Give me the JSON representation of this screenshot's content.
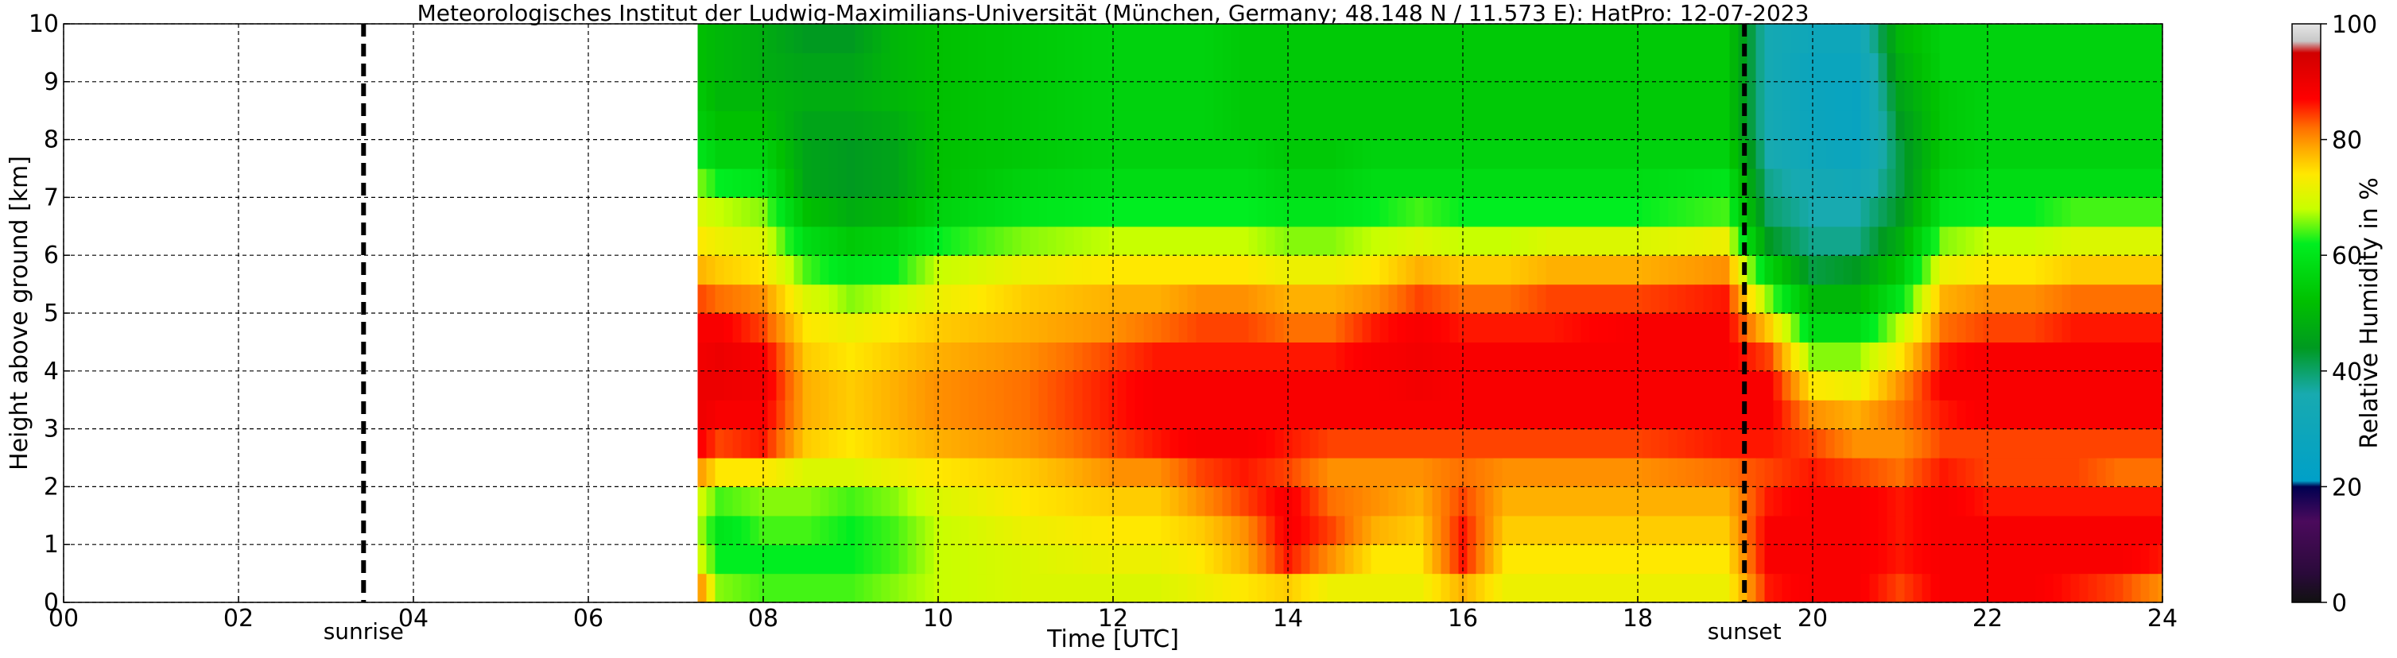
{
  "chart_data": {
    "type": "heatmap",
    "title": "Meteorologisches Institut der Ludwig-Maximilians-Universität (München, Germany; 48.148 N / 11.573 E):    HatPro: 12-07-2023",
    "xlabel": "Time [UTC]",
    "ylabel": "Height above ground [km]",
    "colorbar_label": "Relative Humidity in %",
    "xlim": [
      0,
      24
    ],
    "ylim": [
      0,
      10
    ],
    "xticks": [
      "00",
      "02",
      "04",
      "06",
      "08",
      "10",
      "12",
      "14",
      "16",
      "18",
      "20",
      "22",
      "24"
    ],
    "yticks": [
      "0",
      "1",
      "2",
      "3",
      "4",
      "5",
      "6",
      "7",
      "8",
      "9",
      "10"
    ],
    "colorbar_ticks": [
      "0",
      "20",
      "40",
      "60",
      "80",
      "100"
    ],
    "colorbar_range": [
      0,
      100
    ],
    "grid": true,
    "data_start_hour": 7.25,
    "events": [
      {
        "label": "sunrise",
        "hour": 3.43
      },
      {
        "label": "sunset",
        "hour": 19.22
      }
    ],
    "colormap": [
      {
        "value": 0,
        "color": "#111111"
      },
      {
        "value": 5,
        "color": "#2a0a3a"
      },
      {
        "value": 14,
        "color": "#4b0a5c"
      },
      {
        "value": 20,
        "color": "#000050"
      },
      {
        "value": 21,
        "color": "#00a0c8"
      },
      {
        "value": 36,
        "color": "#18aab0"
      },
      {
        "value": 44,
        "color": "#009a20"
      },
      {
        "value": 52,
        "color": "#00c000"
      },
      {
        "value": 62,
        "color": "#00ee20"
      },
      {
        "value": 68,
        "color": "#c8ff00"
      },
      {
        "value": 74,
        "color": "#ffe800"
      },
      {
        "value": 78,
        "color": "#ffb000"
      },
      {
        "value": 82,
        "color": "#ff7000"
      },
      {
        "value": 87,
        "color": "#ff0000"
      },
      {
        "value": 95,
        "color": "#d00000"
      },
      {
        "value": 97,
        "color": "#c8c8c8"
      },
      {
        "value": 100,
        "color": "#e6e6e6"
      }
    ],
    "heights_km": [
      0.25,
      0.75,
      1.25,
      1.75,
      2.25,
      2.75,
      3.25,
      3.75,
      4.25,
      4.75,
      5.25,
      5.75,
      6.25,
      6.75,
      7.25,
      7.75,
      8.25,
      8.75,
      9.25,
      9.75
    ],
    "humidity_profiles": [
      {
        "hour": 7.25,
        "rh": [
          82,
          70,
          68,
          70,
          80,
          88,
          90,
          90,
          89,
          88,
          84,
          78,
          74,
          70,
          66,
          60,
          55,
          54,
          52,
          52
        ]
      },
      {
        "hour": 7.5,
        "rh": [
          66,
          62,
          60,
          64,
          74,
          84,
          88,
          90,
          90,
          88,
          82,
          76,
          72,
          68,
          62,
          56,
          52,
          50,
          50,
          50
        ]
      },
      {
        "hour": 8.0,
        "rh": [
          64,
          62,
          64,
          66,
          74,
          86,
          88,
          89,
          88,
          84,
          80,
          74,
          70,
          66,
          60,
          56,
          52,
          50,
          48,
          48
        ]
      },
      {
        "hour": 8.5,
        "rh": [
          64,
          62,
          64,
          66,
          70,
          76,
          78,
          78,
          76,
          74,
          70,
          64,
          58,
          52,
          46,
          46,
          46,
          48,
          46,
          44
        ]
      },
      {
        "hour": 9.0,
        "rh": [
          64,
          62,
          62,
          64,
          70,
          74,
          76,
          76,
          74,
          72,
          66,
          60,
          54,
          48,
          44,
          44,
          46,
          48,
          46,
          44
        ]
      },
      {
        "hour": 9.5,
        "rh": [
          66,
          64,
          64,
          66,
          72,
          76,
          78,
          78,
          76,
          74,
          68,
          62,
          56,
          50,
          46,
          46,
          48,
          50,
          50,
          50
        ]
      },
      {
        "hour": 10.0,
        "rh": [
          68,
          68,
          68,
          70,
          74,
          78,
          80,
          80,
          78,
          76,
          72,
          68,
          62,
          56,
          52,
          52,
          52,
          52,
          52,
          52
        ]
      },
      {
        "hour": 11.0,
        "rh": [
          70,
          70,
          72,
          74,
          76,
          80,
          82,
          82,
          80,
          78,
          76,
          72,
          66,
          60,
          56,
          54,
          54,
          54,
          54,
          54
        ]
      },
      {
        "hour": 12.0,
        "rh": [
          70,
          72,
          74,
          76,
          80,
          84,
          86,
          86,
          84,
          80,
          78,
          74,
          68,
          62,
          58,
          56,
          56,
          56,
          56,
          56
        ]
      },
      {
        "hour": 12.5,
        "rh": [
          70,
          72,
          74,
          76,
          80,
          86,
          88,
          88,
          86,
          82,
          78,
          74,
          68,
          62,
          58,
          56,
          56,
          56,
          56,
          56
        ]
      },
      {
        "hour": 13.0,
        "rh": [
          72,
          74,
          76,
          80,
          84,
          88,
          88,
          88,
          86,
          84,
          80,
          74,
          68,
          62,
          58,
          56,
          56,
          56,
          56,
          56
        ]
      },
      {
        "hour": 13.5,
        "rh": [
          74,
          78,
          80,
          84,
          86,
          88,
          88,
          88,
          86,
          84,
          80,
          74,
          68,
          62,
          58,
          56,
          54,
          54,
          54,
          54
        ]
      },
      {
        "hour": 14.0,
        "rh": [
          76,
          86,
          88,
          88,
          84,
          86,
          88,
          88,
          86,
          82,
          78,
          72,
          66,
          60,
          56,
          54,
          54,
          54,
          54,
          54
        ]
      },
      {
        "hour": 14.5,
        "rh": [
          72,
          80,
          84,
          82,
          80,
          84,
          88,
          88,
          86,
          82,
          78,
          72,
          66,
          60,
          56,
          54,
          54,
          54,
          54,
          54
        ]
      },
      {
        "hour": 15.0,
        "rh": [
          72,
          74,
          78,
          80,
          80,
          84,
          88,
          88,
          88,
          86,
          80,
          74,
          68,
          62,
          58,
          56,
          54,
          54,
          54,
          54
        ]
      },
      {
        "hour": 15.5,
        "rh": [
          72,
          74,
          76,
          78,
          80,
          84,
          88,
          89,
          89,
          88,
          84,
          78,
          70,
          64,
          58,
          56,
          54,
          54,
          54,
          54
        ]
      },
      {
        "hour": 16.0,
        "rh": [
          78,
          86,
          86,
          84,
          82,
          84,
          88,
          88,
          88,
          86,
          82,
          76,
          68,
          62,
          58,
          56,
          54,
          54,
          54,
          54
        ]
      },
      {
        "hour": 16.5,
        "rh": [
          72,
          74,
          76,
          78,
          80,
          84,
          88,
          88,
          88,
          86,
          82,
          76,
          68,
          62,
          58,
          56,
          54,
          54,
          54,
          54
        ]
      },
      {
        "hour": 17.0,
        "rh": [
          72,
          74,
          76,
          78,
          80,
          84,
          88,
          88,
          88,
          86,
          84,
          78,
          70,
          62,
          58,
          56,
          54,
          54,
          54,
          54
        ]
      },
      {
        "hour": 18.0,
        "rh": [
          72,
          74,
          76,
          78,
          80,
          84,
          88,
          88,
          88,
          88,
          84,
          78,
          70,
          62,
          58,
          56,
          54,
          54,
          54,
          54
        ]
      },
      {
        "hour": 19.0,
        "rh": [
          72,
          74,
          76,
          78,
          82,
          86,
          88,
          88,
          88,
          88,
          86,
          80,
          72,
          64,
          60,
          56,
          54,
          54,
          54,
          54
        ]
      },
      {
        "hour": 19.5,
        "rh": [
          86,
          88,
          88,
          86,
          84,
          86,
          88,
          88,
          84,
          76,
          66,
          56,
          44,
          40,
          38,
          36,
          34,
          34,
          34,
          34
        ]
      },
      {
        "hour": 20.0,
        "rh": [
          88,
          88,
          88,
          88,
          86,
          84,
          80,
          74,
          66,
          58,
          50,
          42,
          38,
          36,
          34,
          30,
          28,
          28,
          28,
          30
        ]
      },
      {
        "hour": 20.5,
        "rh": [
          88,
          88,
          88,
          88,
          84,
          80,
          78,
          72,
          66,
          58,
          50,
          44,
          38,
          36,
          32,
          28,
          26,
          26,
          28,
          30
        ]
      },
      {
        "hour": 21.0,
        "rh": [
          84,
          86,
          86,
          86,
          82,
          80,
          82,
          80,
          74,
          68,
          60,
          54,
          48,
          44,
          42,
          42,
          44,
          46,
          48,
          50
        ]
      },
      {
        "hour": 21.5,
        "rh": [
          88,
          88,
          88,
          88,
          86,
          84,
          86,
          88,
          86,
          82,
          78,
          72,
          66,
          60,
          56,
          54,
          54,
          54,
          56,
          56
        ]
      },
      {
        "hour": 22.0,
        "rh": [
          88,
          88,
          88,
          86,
          84,
          84,
          88,
          88,
          88,
          84,
          80,
          74,
          68,
          62,
          58,
          56,
          56,
          56,
          56,
          56
        ]
      },
      {
        "hour": 22.5,
        "rh": [
          88,
          88,
          88,
          86,
          84,
          84,
          88,
          88,
          88,
          84,
          80,
          74,
          68,
          62,
          58,
          56,
          56,
          56,
          56,
          56
        ]
      },
      {
        "hour": 23.0,
        "rh": [
          86,
          88,
          88,
          86,
          84,
          84,
          88,
          88,
          88,
          86,
          82,
          76,
          70,
          64,
          58,
          56,
          56,
          56,
          56,
          56
        ]
      },
      {
        "hour": 23.5,
        "rh": [
          84,
          88,
          88,
          86,
          82,
          84,
          88,
          88,
          88,
          86,
          82,
          76,
          70,
          64,
          58,
          56,
          56,
          56,
          56,
          56
        ]
      },
      {
        "hour": 24.0,
        "rh": [
          80,
          86,
          88,
          86,
          82,
          84,
          88,
          88,
          88,
          86,
          82,
          76,
          70,
          64,
          58,
          56,
          56,
          56,
          56,
          56
        ]
      }
    ]
  }
}
